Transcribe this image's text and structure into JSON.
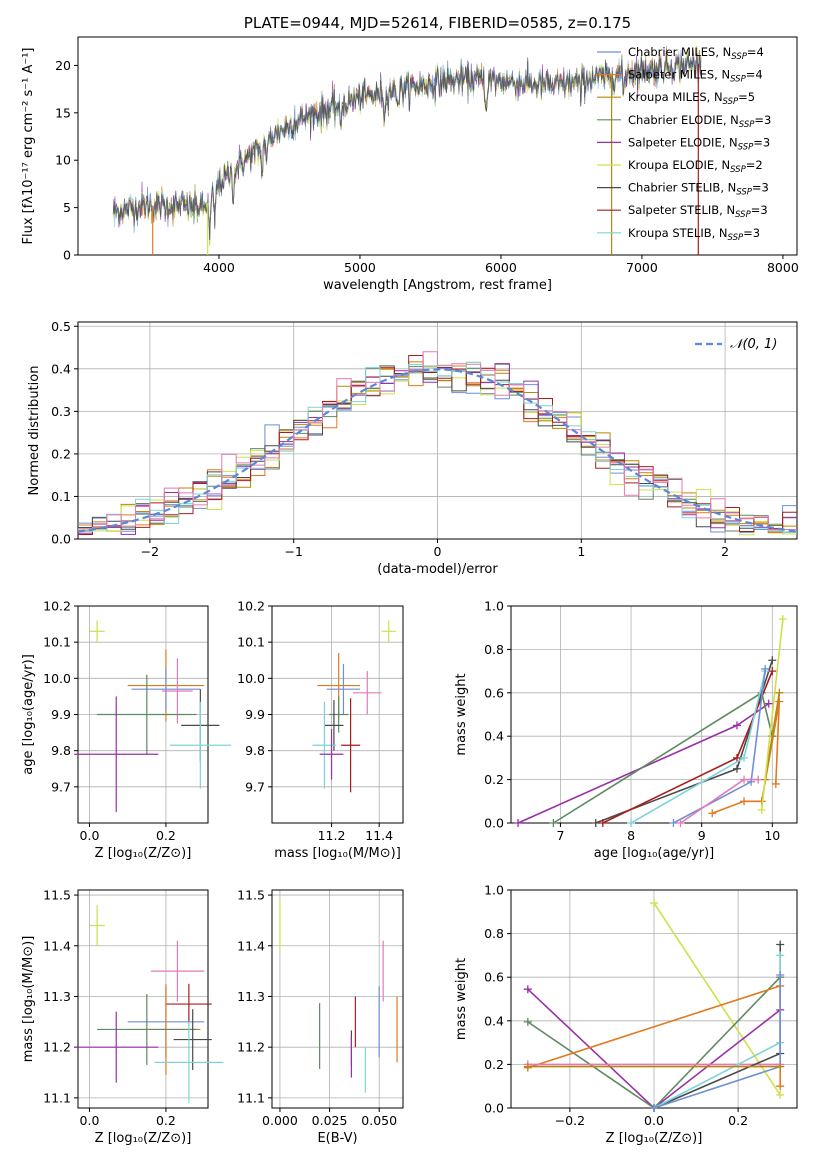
{
  "colors": {
    "Chabrier MILES": "#6f8fd6",
    "Salpeter MILES": "#e07a1f",
    "Kroupa MILES": "#b8870b",
    "Chabrier ELODIE": "#5e8a62",
    "Salpeter ELODIE": "#9b2fa8",
    "Kroupa ELODIE": "#cfe04a",
    "Chabrier STELIB": "#4a4a4a",
    "Salpeter STELIB": "#a81e1e",
    "Kroupa STELIB": "#7dd4d8",
    "pink": "#e27ab8",
    "gauss": "#5b88d8"
  },
  "chart_data": [
    {
      "id": "spectrum",
      "type": "line",
      "title": "PLATE=0944, MJD=52614, FIBERID=0585, z=0.175",
      "xlabel": "wavelength [Angstrom, rest frame]",
      "ylabel": "Flux [fλ10⁻¹⁷ erg cm⁻² s⁻¹ A⁻¹]",
      "xlim": [
        3000,
        8100
      ],
      "ylim": [
        0,
        23
      ],
      "xticks": [
        "4000",
        "5000",
        "6000",
        "7000",
        "8000"
      ],
      "yticks": [
        "0",
        "5",
        "10",
        "15",
        "20"
      ],
      "legend_position": "top-right",
      "legend": [
        {
          "label": "Chabrier MILES, N",
          "sub": "SSP",
          "suffix": "=4"
        },
        {
          "label": "Salpeter MILES, N",
          "sub": "SSP",
          "suffix": "=4"
        },
        {
          "label": "Kroupa MILES, N",
          "sub": "SSP",
          "suffix": "=5"
        },
        {
          "label": "Chabrier ELODIE, N",
          "sub": "SSP",
          "suffix": "=3"
        },
        {
          "label": "Salpeter ELODIE, N",
          "sub": "SSP",
          "suffix": "=3"
        },
        {
          "label": "Kroupa ELODIE, N",
          "sub": "SSP",
          "suffix": "=2"
        },
        {
          "label": "Chabrier STELIB, N",
          "sub": "SSP",
          "suffix": "=3"
        },
        {
          "label": "Salpeter STELIB, N",
          "sub": "SSP",
          "suffix": "=3"
        },
        {
          "label": "Kroupa STELIB, N",
          "sub": "SSP",
          "suffix": "=3"
        }
      ],
      "continuum_anchors": [
        [
          3250,
          4.6
        ],
        [
          3500,
          5.2
        ],
        [
          3700,
          5.2
        ],
        [
          3900,
          5.0
        ],
        [
          4000,
          7.5
        ],
        [
          4200,
          10.2
        ],
        [
          4400,
          12.8
        ],
        [
          4600,
          14.5
        ],
        [
          4800,
          15.5
        ],
        [
          5000,
          16.6
        ],
        [
          5200,
          17.2
        ],
        [
          5400,
          17.8
        ],
        [
          5600,
          18.3
        ],
        [
          5800,
          18.6
        ],
        [
          6000,
          18.3
        ],
        [
          6200,
          18.1
        ],
        [
          6400,
          17.9
        ],
        [
          6600,
          18.5
        ],
        [
          6800,
          19.0
        ],
        [
          7000,
          19.5
        ],
        [
          7200,
          19.8
        ],
        [
          7400,
          20.2
        ]
      ]
    },
    {
      "id": "residuals",
      "type": "bar",
      "xlabel": "(data-model)/error",
      "ylabel": "Normed distribution",
      "xlim": [
        -2.5,
        2.5
      ],
      "ylim": [
        0,
        0.51
      ],
      "xticks": [
        "−2",
        "−1",
        "0",
        "1",
        "2"
      ],
      "yticks": [
        "0.0",
        "0.1",
        "0.2",
        "0.3",
        "0.4",
        "0.5"
      ],
      "grid": true,
      "legend": "𝒩(0, 1)",
      "legend_position": "top-right",
      "bin_width": 0.1
    },
    {
      "id": "age-vs-Z",
      "type": "scatter",
      "xlabel": "Z [log₁₀(Z/Z⊙)]",
      "ylabel": "age  [log₁₀(age/yr)]",
      "xlim": [
        -0.03,
        0.31
      ],
      "ylim": [
        9.6,
        10.2
      ],
      "xticks": [
        "0.0",
        "0.2"
      ],
      "yticks": [
        "9.7",
        "9.8",
        "9.9",
        "10.0",
        "10.1",
        "10.2"
      ],
      "grid": true,
      "points": [
        {
          "series": "Kroupa ELODIE",
          "x": 0.02,
          "y": 10.13,
          "xerr": 0.02,
          "yerr": 0.03
        },
        {
          "series": "Salpeter MILES",
          "x": 0.2,
          "y": 9.98,
          "xerr": 0.1,
          "yerr": 0.1
        },
        {
          "series": "Chabrier MILES",
          "x": 0.2,
          "y": 9.97,
          "xerr": 0.09,
          "yerr": 0.06
        },
        {
          "series": "pink",
          "x": 0.23,
          "y": 9.965,
          "xerr": 0.04,
          "yerr": 0.09
        },
        {
          "series": "Chabrier ELODIE",
          "x": 0.15,
          "y": 9.9,
          "xerr": 0.13,
          "yerr": 0.11
        },
        {
          "series": "Chabrier STELIB",
          "x": 0.29,
          "y": 9.87,
          "xerr": 0.05,
          "yerr": 0.1
        },
        {
          "series": "Kroupa STELIB",
          "x": 0.29,
          "y": 9.815,
          "xerr": 0.08,
          "yerr": 0.12
        },
        {
          "series": "Salpeter ELODIE",
          "x": 0.07,
          "y": 9.79,
          "xerr": 0.11,
          "yerr": 0.16
        }
      ]
    },
    {
      "id": "age-vs-mass",
      "type": "scatter",
      "xlabel": "mass [log₁₀(M/M⊙)]",
      "xlim": [
        10.95,
        11.5
      ],
      "ylim": [
        9.6,
        10.2
      ],
      "xticks": [
        "11.2",
        "11.4"
      ],
      "yticks": [
        "9.7",
        "9.8",
        "9.9",
        "10.0",
        "10.1",
        "10.2"
      ],
      "grid": true,
      "points": [
        {
          "series": "Kroupa ELODIE",
          "x": 11.44,
          "y": 10.13,
          "xerr": 0.03,
          "yerr": 0.03
        },
        {
          "series": "Salpeter MILES",
          "x": 11.23,
          "y": 9.98,
          "xerr": 0.09,
          "yerr": 0.09
        },
        {
          "series": "Chabrier MILES",
          "x": 11.25,
          "y": 9.97,
          "xerr": 0.07,
          "yerr": 0.07
        },
        {
          "series": "pink",
          "x": 11.35,
          "y": 9.96,
          "xerr": 0.06,
          "yerr": 0.06
        },
        {
          "series": "Chabrier ELODIE",
          "x": 11.23,
          "y": 9.9,
          "xerr": 0.04,
          "yerr": 0.05
        },
        {
          "series": "Chabrier STELIB",
          "x": 11.21,
          "y": 9.87,
          "xerr": 0.04,
          "yerr": 0.07
        },
        {
          "series": "Salpeter STELIB",
          "x": 11.28,
          "y": 9.815,
          "xerr": 0.04,
          "yerr": 0.13
        },
        {
          "series": "Kroupa STELIB",
          "x": 11.17,
          "y": 9.815,
          "xerr": 0.05,
          "yerr": 0.12
        },
        {
          "series": "Salpeter ELODIE",
          "x": 11.2,
          "y": 9.79,
          "xerr": 0.05,
          "yerr": 0.07
        }
      ]
    },
    {
      "id": "mass-weight-vs-age",
      "type": "line",
      "xlabel": "age  [log₁₀(age/yr)]",
      "ylabel": "mass weight",
      "xlim": [
        6.3,
        10.35
      ],
      "ylim": [
        0,
        1.0
      ],
      "xticks": [
        "7",
        "8",
        "9",
        "10"
      ],
      "yticks": [
        "0.0",
        "0.2",
        "0.4",
        "0.6",
        "0.8",
        "1.0"
      ],
      "grid": true,
      "series": [
        {
          "name": "Salpeter ELODIE",
          "points": [
            [
              6.4,
              0.0
            ],
            [
              9.5,
              0.45
            ],
            [
              9.95,
              0.55
            ]
          ]
        },
        {
          "name": "Chabrier ELODIE",
          "points": [
            [
              6.9,
              0.0
            ],
            [
              9.85,
              0.6
            ],
            [
              10.0,
              0.4
            ]
          ]
        },
        {
          "name": "Chabrier STELIB",
          "points": [
            [
              7.5,
              0.0
            ],
            [
              9.5,
              0.25
            ],
            [
              10.0,
              0.75
            ]
          ]
        },
        {
          "name": "Salpeter STELIB",
          "points": [
            [
              7.6,
              0.0
            ],
            [
              9.5,
              0.3
            ],
            [
              10.0,
              0.7
            ]
          ]
        },
        {
          "name": "Kroupa STELIB",
          "points": [
            [
              8.0,
              0.0
            ],
            [
              9.6,
              0.3
            ],
            [
              9.9,
              0.7
            ]
          ]
        },
        {
          "name": "Chabrier MILES",
          "points": [
            [
              8.6,
              0.0
            ],
            [
              9.7,
              0.19
            ],
            [
              9.9,
              0.71
            ]
          ]
        },
        {
          "name": "pink",
          "points": [
            [
              8.7,
              0.0
            ],
            [
              9.6,
              0.2
            ],
            [
              9.8,
              0.2
            ]
          ]
        },
        {
          "name": "Salpeter MILES",
          "points": [
            [
              9.15,
              0.045
            ],
            [
              9.6,
              0.1
            ],
            [
              9.85,
              0.1
            ],
            [
              10.1,
              0.56
            ],
            [
              10.05,
              0.18
            ]
          ]
        },
        {
          "name": "Kroupa MILES",
          "points": [
            [
              9.9,
              0.2
            ],
            [
              10.1,
              0.6
            ]
          ]
        },
        {
          "name": "Kroupa ELODIE",
          "points": [
            [
              9.85,
              0.06
            ],
            [
              10.15,
              0.94
            ]
          ]
        }
      ]
    },
    {
      "id": "mass-vs-Z",
      "type": "scatter",
      "xlabel": "Z [log₁₀(Z/Z⊙)]",
      "ylabel": "mass [log₁₀(M/M⊙)]",
      "xlim": [
        -0.03,
        0.31
      ],
      "ylim": [
        11.08,
        11.51
      ],
      "xticks": [
        "0.0",
        "0.2"
      ],
      "yticks": [
        "11.1",
        "11.2",
        "11.3",
        "11.4",
        "11.5"
      ],
      "grid": true,
      "points": [
        {
          "series": "Kroupa ELODIE",
          "x": 0.02,
          "y": 11.44,
          "xerr": 0.02,
          "yerr": 0.04
        },
        {
          "series": "pink",
          "x": 0.23,
          "y": 11.35,
          "xerr": 0.07,
          "yerr": 0.06
        },
        {
          "series": "Salpeter STELIB",
          "x": 0.26,
          "y": 11.285,
          "xerr": 0.06,
          "yerr": 0.04
        },
        {
          "series": "Chabrier MILES",
          "x": 0.2,
          "y": 11.25,
          "xerr": 0.1,
          "yerr": 0.07
        },
        {
          "series": "Salpeter MILES",
          "x": 0.2,
          "y": 11.235,
          "xerr": 0.09,
          "yerr": 0.09
        },
        {
          "series": "Chabrier ELODIE",
          "x": 0.15,
          "y": 11.235,
          "xerr": 0.13,
          "yerr": 0.07
        },
        {
          "series": "Chabrier STELIB",
          "x": 0.27,
          "y": 11.215,
          "xerr": 0.05,
          "yerr": 0.06
        },
        {
          "series": "Salpeter ELODIE",
          "x": 0.07,
          "y": 11.2,
          "xerr": 0.11,
          "yerr": 0.07
        },
        {
          "series": "Kroupa STELIB",
          "x": 0.26,
          "y": 11.17,
          "xerr": 0.09,
          "yerr": 0.08
        }
      ]
    },
    {
      "id": "mass-vs-EBV",
      "type": "scatter",
      "xlabel": "E(B-V)",
      "xlim": [
        -0.004,
        0.062
      ],
      "ylim": [
        11.08,
        11.51
      ],
      "xticks": [
        "0.000",
        "0.025",
        "0.050"
      ],
      "yticks": [
        "11.1",
        "11.2",
        "11.3",
        "11.4",
        "11.5"
      ],
      "grid": true,
      "points": [
        {
          "series": "Kroupa ELODIE",
          "x": 0.0,
          "y": 11.44,
          "yerr": 0.05
        },
        {
          "series": "pink",
          "x": 0.052,
          "y": 11.35,
          "yerr": 0.06
        },
        {
          "series": "Salpeter STELIB",
          "x": 0.038,
          "y": 11.25,
          "yerr": 0.05
        },
        {
          "series": "Chabrier MILES",
          "x": 0.05,
          "y": 11.25,
          "yerr": 0.07
        },
        {
          "series": "Salpeter MILES",
          "x": 0.059,
          "y": 11.235,
          "yerr": 0.065
        },
        {
          "series": "Chabrier ELODIE",
          "x": 0.02,
          "y": 11.222,
          "yerr": 0.065
        },
        {
          "series": "Chabrier STELIB",
          "x": 0.036,
          "y": 11.198,
          "yerr": 0.035
        },
        {
          "series": "Salpeter ELODIE",
          "x": 0.036,
          "y": 11.18,
          "yerr": 0.04
        },
        {
          "series": "Kroupa STELIB",
          "x": 0.043,
          "y": 11.155,
          "yerr": 0.045
        }
      ]
    },
    {
      "id": "mass-weight-vs-Z",
      "type": "line",
      "xlabel": "Z [log₁₀(Z/Z⊙)]",
      "ylabel": "mass weight",
      "xlim": [
        -0.34,
        0.34
      ],
      "ylim": [
        0,
        1.0
      ],
      "xticks": [
        "−0.2",
        "0.0",
        "0.2"
      ],
      "yticks": [
        "0.0",
        "0.2",
        "0.4",
        "0.6",
        "0.8",
        "1.0"
      ],
      "grid": true,
      "series": [
        {
          "name": "Kroupa ELODIE",
          "points": [
            [
              0.0,
              0.94
            ],
            [
              0.3,
              0.06
            ]
          ]
        },
        {
          "name": "Salpeter ELODIE",
          "points": [
            [
              -0.3,
              0.545
            ],
            [
              0.0,
              0.0
            ],
            [
              0.3,
              0.45
            ]
          ]
        },
        {
          "name": "Chabrier ELODIE",
          "points": [
            [
              -0.3,
              0.395
            ],
            [
              0.0,
              0.0
            ],
            [
              0.3,
              0.6
            ]
          ]
        },
        {
          "name": "Salpeter MILES",
          "points": [
            [
              -0.3,
              0.185
            ],
            [
              0.3,
              0.56
            ],
            [
              0.3,
              0.1
            ]
          ]
        },
        {
          "name": "pink",
          "points": [
            [
              -0.3,
              0.2
            ],
            [
              0.3,
              0.2
            ]
          ]
        },
        {
          "name": "Chabrier STELIB",
          "points": [
            [
              0.0,
              0.0
            ],
            [
              0.3,
              0.25
            ],
            [
              0.3,
              0.75
            ]
          ]
        },
        {
          "name": "Kroupa STELIB",
          "points": [
            [
              0.0,
              0.0
            ],
            [
              0.3,
              0.3
            ],
            [
              0.3,
              0.7
            ]
          ]
        },
        {
          "name": "Chabrier MILES",
          "points": [
            [
              0.0,
              0.0
            ],
            [
              0.3,
              0.19
            ],
            [
              0.3,
              0.61
            ]
          ]
        },
        {
          "name": "Kroupa MILES",
          "points": [
            [
              -0.3,
              0.19
            ],
            [
              0.3,
              0.19
            ]
          ]
        }
      ]
    }
  ]
}
